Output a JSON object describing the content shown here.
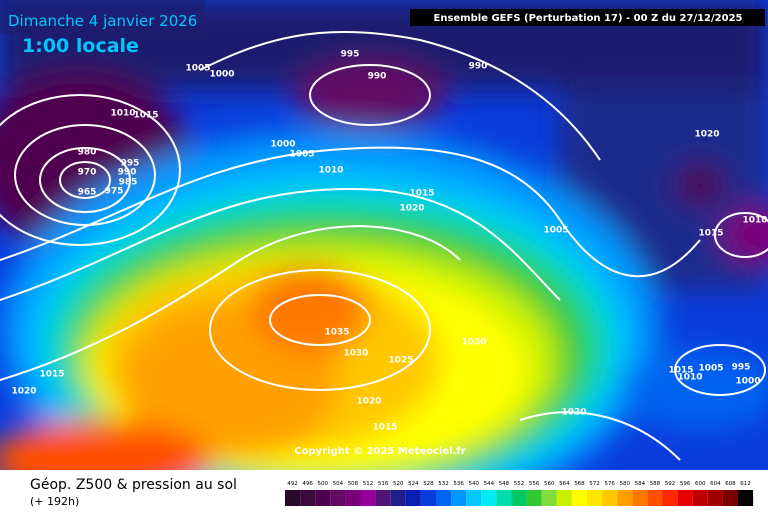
{
  "header": {
    "date": "Dimanche 4 janvier 2026",
    "time": "1:00 locale",
    "model": "Ensemble GEFS  (Perturbation 17)  -  00 Z du 27/12/2025"
  },
  "footer": {
    "title": "Géop. Z500 & pression au sol",
    "lead": "(+ 192h)"
  },
  "copyright": "Copyright © 2025 Meteociel.fr",
  "isobar_labels": [
    "995",
    "1005",
    "1000",
    "990",
    "990",
    "1010",
    "1015",
    "980",
    "995",
    "990",
    "970",
    "985",
    "965",
    "975",
    "1000",
    "1005",
    "1010",
    "1020",
    "1015",
    "1020",
    "1005",
    "1015",
    "1010",
    "1035",
    "1030",
    "1025",
    "1030",
    "1015",
    "1020",
    "1020",
    "1015",
    "1020",
    "1015",
    "1005",
    "995",
    "1010",
    "1000"
  ],
  "colorbar": {
    "labels": [
      "492",
      "496",
      "500",
      "504",
      "508",
      "512",
      "516",
      "520",
      "524",
      "528",
      "532",
      "536",
      "540",
      "544",
      "548",
      "552",
      "556",
      "560",
      "564",
      "568",
      "572",
      "576",
      "580",
      "584",
      "588",
      "592",
      "596",
      "600",
      "604",
      "608",
      "612"
    ],
    "colors": [
      "#2a0a2a",
      "#3c0a3c",
      "#500050",
      "#640a64",
      "#7a007a",
      "#960096",
      "#501478",
      "#1e1e8c",
      "#0a1eb4",
      "#0a3cdc",
      "#0064f0",
      "#0096ff",
      "#00c8ff",
      "#00ebf0",
      "#00dcaa",
      "#00c864",
      "#32c832",
      "#82dc3c",
      "#c8f000",
      "#ffff00",
      "#ffe600",
      "#ffc800",
      "#ffa000",
      "#ff7800",
      "#ff5000",
      "#ff2800",
      "#e60000",
      "#c00000",
      "#a00000",
      "#780000",
      "#000000"
    ]
  }
}
